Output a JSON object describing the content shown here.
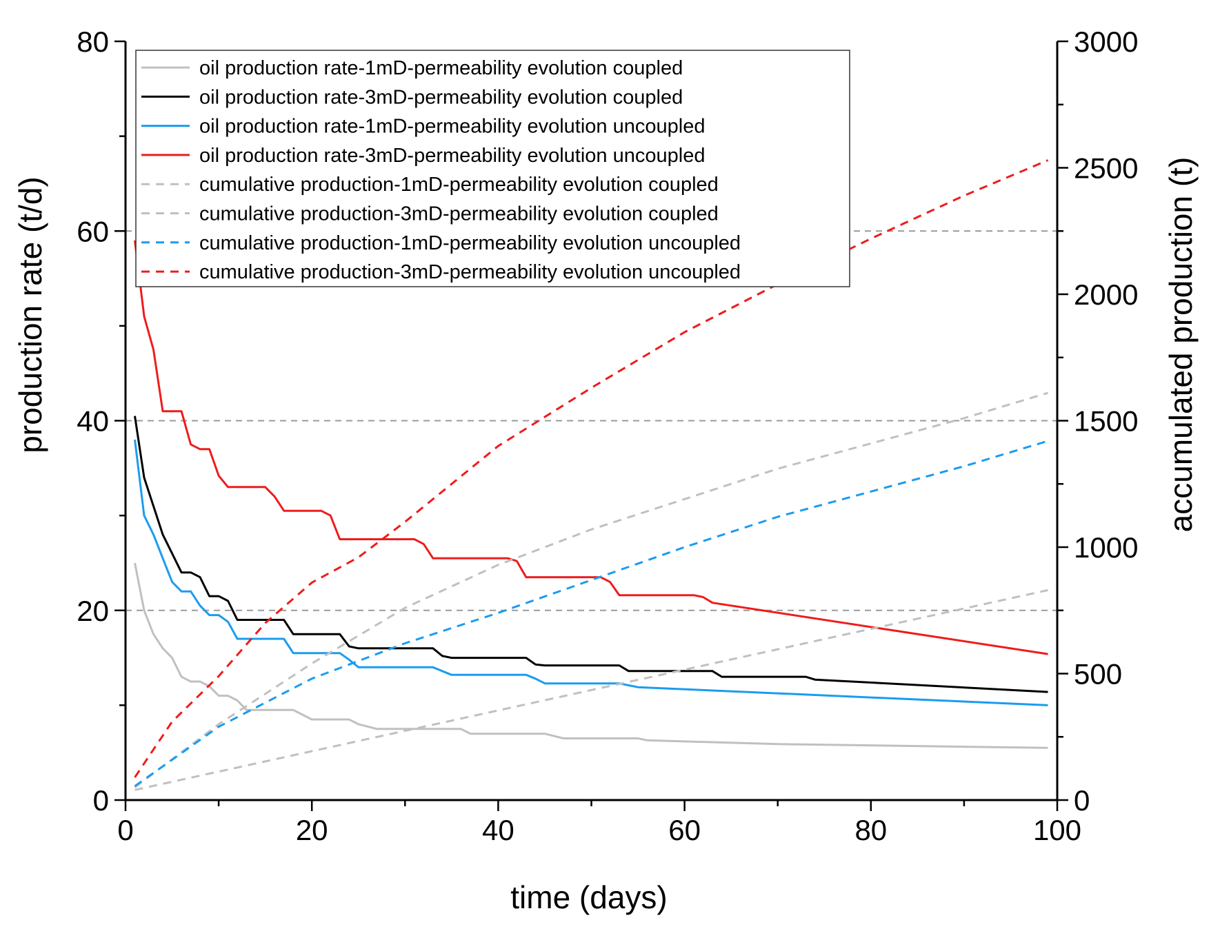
{
  "chart_data": {
    "type": "line",
    "xlabel": "time (days)",
    "ylabel": "production rate (t/d)",
    "y2label": "accumulated production (t)",
    "xlim": [
      0,
      100
    ],
    "ylim": [
      0,
      80
    ],
    "y2lim": [
      0,
      3000
    ],
    "xticks": [
      "0",
      "20",
      "40",
      "60",
      "80",
      "100"
    ],
    "yticks": [
      "0",
      "20",
      "40",
      "60",
      "80"
    ],
    "y2ticks": [
      "0",
      "500",
      "1000",
      "1500",
      "2000",
      "2500",
      "3000"
    ],
    "gridlines_y": [
      20,
      40,
      60
    ],
    "legend_position": "top-left",
    "series": [
      {
        "name": "oil production rate-1mD-permeability evolution coupled",
        "axis": "left",
        "color": "#c0c0c0",
        "dash": "solid",
        "x": [
          1,
          2,
          3,
          4,
          5,
          6,
          7,
          8,
          9,
          10,
          11,
          12,
          13,
          18,
          20,
          24,
          25,
          27,
          36,
          37,
          45,
          47,
          55,
          56,
          70,
          99
        ],
        "y": [
          25,
          20,
          17.5,
          16,
          15,
          13,
          12.5,
          12.5,
          12,
          11,
          11,
          10.5,
          9.5,
          9.5,
          8.5,
          8.5,
          8,
          7.5,
          7.5,
          7,
          7,
          6.5,
          6.5,
          6.3,
          5.9,
          5.5
        ]
      },
      {
        "name": "oil production rate-3mD-permeability evolution coupled",
        "axis": "left",
        "color": "#000000",
        "dash": "solid",
        "x": [
          1,
          2,
          3,
          4,
          5,
          6,
          7,
          8,
          9,
          10,
          11,
          12,
          17,
          18,
          23,
          24,
          25,
          33,
          34,
          35,
          43,
          44,
          45,
          53,
          54,
          63,
          64,
          73,
          74,
          99
        ],
        "y": [
          40.5,
          34,
          31,
          28,
          26,
          24,
          24,
          23.5,
          21.5,
          21.5,
          21,
          19,
          19,
          17.5,
          17.5,
          16.2,
          16,
          16,
          15.2,
          15,
          15,
          14.3,
          14.2,
          14.2,
          13.6,
          13.6,
          13,
          13,
          12.7,
          11.4
        ]
      },
      {
        "name": "oil production rate-1mD-permeability evolution uncoupled",
        "axis": "left",
        "color": "#1a9cf0",
        "dash": "solid",
        "x": [
          1,
          2,
          3,
          4,
          5,
          6,
          7,
          8,
          9,
          10,
          11,
          12,
          17,
          18,
          23,
          24,
          25,
          33,
          34,
          35,
          43,
          44,
          45,
          53,
          54,
          55,
          99
        ],
        "y": [
          38,
          30,
          28,
          25.5,
          23,
          22,
          22,
          20.5,
          19.5,
          19.5,
          18.8,
          17,
          17,
          15.5,
          15.5,
          14.8,
          14,
          14,
          13.6,
          13.2,
          13.2,
          12.8,
          12.3,
          12.3,
          12.1,
          11.9,
          10
        ]
      },
      {
        "name": "oil production rate-3mD-permeability evolution uncoupled",
        "axis": "left",
        "color": "#ee1c1c",
        "dash": "solid",
        "x": [
          1,
          2,
          3,
          4,
          5,
          6,
          7,
          8,
          9,
          10,
          11,
          15,
          16,
          17,
          21,
          22,
          23,
          31,
          32,
          33,
          41,
          42,
          43,
          51,
          52,
          53,
          61,
          62,
          63,
          99
        ],
        "y": [
          59,
          51,
          47.5,
          41,
          41,
          41,
          37.5,
          37,
          37,
          34.2,
          33,
          33,
          32,
          30.5,
          30.5,
          30,
          27.5,
          27.5,
          27,
          25.5,
          25.5,
          25.2,
          23.5,
          23.5,
          23,
          21.6,
          21.6,
          21.4,
          20.8,
          15.4
        ]
      },
      {
        "name": "cumulative production-1mD-permeability evolution coupled",
        "axis": "right",
        "color": "#c0c0c0",
        "dash": "dashed",
        "x": [
          1,
          99
        ],
        "y": [
          40,
          830
        ]
      },
      {
        "name": "cumulative production-3mD-permeability evolution coupled",
        "axis": "right",
        "color": "#c0c0c0",
        "dash": "dashed",
        "x": [
          1,
          10,
          20,
          30,
          40,
          50,
          60,
          70,
          80,
          90,
          99
        ],
        "y": [
          50,
          300,
          540,
          760,
          930,
          1070,
          1190,
          1310,
          1410,
          1510,
          1610
        ]
      },
      {
        "name": "cumulative production-1mD-permeability evolution uncoupled",
        "axis": "right",
        "color": "#1a9cf0",
        "dash": "dashed",
        "x": [
          1,
          10,
          20,
          30,
          40,
          50,
          60,
          70,
          80,
          90,
          99
        ],
        "y": [
          55,
          290,
          480,
          620,
          740,
          870,
          1000,
          1120,
          1220,
          1320,
          1420
        ]
      },
      {
        "name": "cumulative production-3mD-permeability evolution uncoupled",
        "axis": "right",
        "color": "#ee1c1c",
        "dash": "dashed",
        "x": [
          1,
          5,
          10,
          15,
          20,
          25,
          30,
          40,
          50,
          60,
          70,
          80,
          90,
          99
        ],
        "y": [
          90,
          310,
          490,
          700,
          860,
          960,
          1100,
          1400,
          1630,
          1850,
          2040,
          2220,
          2390,
          2530
        ]
      }
    ]
  }
}
